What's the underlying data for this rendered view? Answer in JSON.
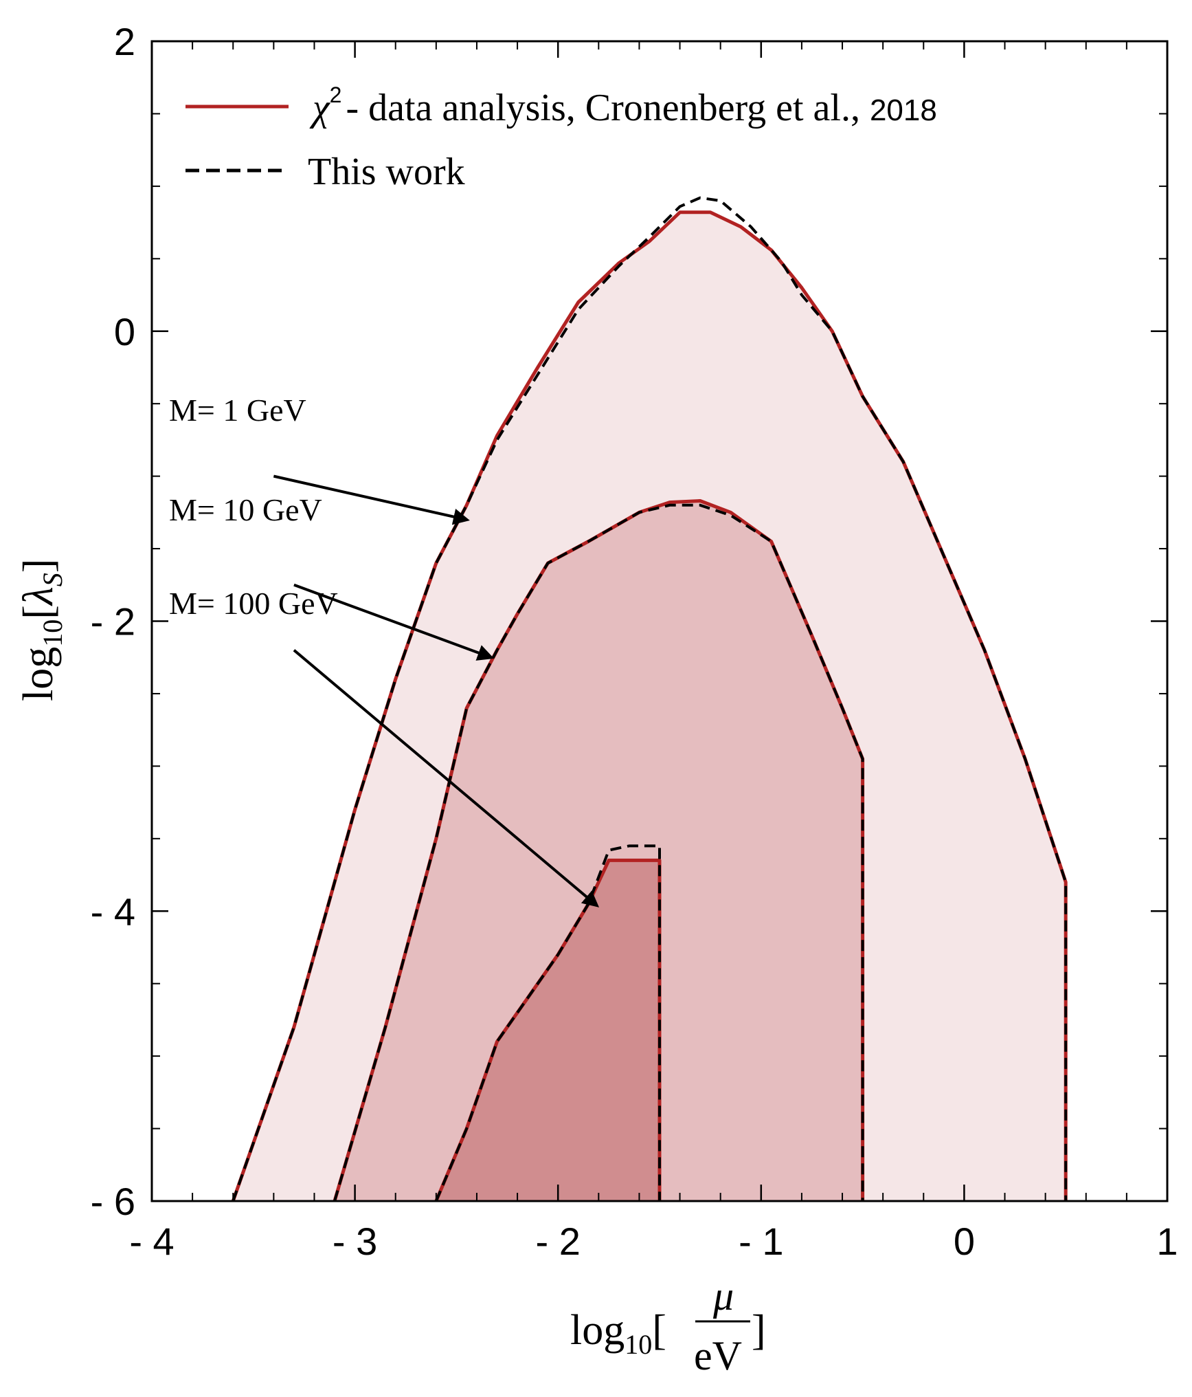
{
  "chart_data": {
    "type": "area",
    "xlabel": {
      "prefix": "log",
      "sub": "10",
      "open": "[",
      "num": "μ",
      "den": "eV",
      "close": "]"
    },
    "ylabel": {
      "prefix": "log",
      "sub": "10",
      "open": "[",
      "sym": "λ",
      "symsub": "S",
      "close": "]"
    },
    "xlim": [
      -4,
      1
    ],
    "ylim": [
      -6,
      2
    ],
    "xticks": [
      -4,
      -3,
      -2,
      -1,
      0,
      1
    ],
    "xtick_labels": [
      "- 4",
      "- 3",
      "- 2",
      "- 1",
      "0",
      "1"
    ],
    "yticks": [
      -6,
      -4,
      -2,
      0,
      2
    ],
    "ytick_labels": [
      "- 6",
      "- 4",
      "- 2",
      "0",
      "2"
    ],
    "legend": {
      "position": "top-left",
      "entries": [
        {
          "style": "solid",
          "color": "#b22222",
          "symbol": "χ",
          "power": "2",
          "text": "- data analysis, Cronenberg et al.,",
          "year": "2018"
        },
        {
          "style": "dashed",
          "color": "#000000",
          "text": "This work"
        }
      ]
    },
    "series": [
      {
        "name": "M= 1 GeV",
        "fill": "#f5e6e7",
        "solid": [
          [
            -3.6,
            -6.0
          ],
          [
            -3.3,
            -4.8
          ],
          [
            -3.0,
            -3.3
          ],
          [
            -2.8,
            -2.4
          ],
          [
            -2.6,
            -1.6
          ],
          [
            -2.45,
            -1.2
          ],
          [
            -2.3,
            -0.72
          ],
          [
            -2.1,
            -0.25
          ],
          [
            -1.9,
            0.2
          ],
          [
            -1.7,
            0.47
          ],
          [
            -1.55,
            0.62
          ],
          [
            -1.4,
            0.82
          ],
          [
            -1.25,
            0.82
          ],
          [
            -1.1,
            0.72
          ],
          [
            -0.95,
            0.56
          ],
          [
            -0.8,
            0.3
          ],
          [
            -0.65,
            0.0
          ],
          [
            -0.5,
            -0.45
          ],
          [
            -0.3,
            -0.9
          ],
          [
            -0.1,
            -1.55
          ],
          [
            0.1,
            -2.2
          ],
          [
            0.3,
            -2.95
          ],
          [
            0.5,
            -3.8
          ],
          [
            0.5,
            -6.0
          ]
        ],
        "dashed": [
          [
            -3.6,
            -6.0
          ],
          [
            -3.3,
            -4.8
          ],
          [
            -3.0,
            -3.3
          ],
          [
            -2.8,
            -2.4
          ],
          [
            -2.6,
            -1.6
          ],
          [
            -2.45,
            -1.2
          ],
          [
            -2.3,
            -0.75
          ],
          [
            -2.1,
            -0.3
          ],
          [
            -1.9,
            0.15
          ],
          [
            -1.7,
            0.45
          ],
          [
            -1.55,
            0.65
          ],
          [
            -1.4,
            0.86
          ],
          [
            -1.3,
            0.92
          ],
          [
            -1.2,
            0.9
          ],
          [
            -1.05,
            0.72
          ],
          [
            -0.9,
            0.48
          ],
          [
            -0.8,
            0.25
          ],
          [
            -0.65,
            0.0
          ],
          [
            -0.5,
            -0.45
          ],
          [
            -0.3,
            -0.9
          ],
          [
            -0.1,
            -1.55
          ],
          [
            0.1,
            -2.2
          ],
          [
            0.3,
            -2.95
          ],
          [
            0.5,
            -3.8
          ],
          [
            0.5,
            -6.0
          ]
        ]
      },
      {
        "name": "M= 10 GeV",
        "fill": "#e5bdbf",
        "solid": [
          [
            -3.1,
            -6.0
          ],
          [
            -2.85,
            -4.8
          ],
          [
            -2.6,
            -3.5
          ],
          [
            -2.45,
            -2.6
          ],
          [
            -2.3,
            -2.2
          ],
          [
            -2.2,
            -1.95
          ],
          [
            -2.05,
            -1.6
          ],
          [
            -1.85,
            -1.45
          ],
          [
            -1.6,
            -1.25
          ],
          [
            -1.45,
            -1.18
          ],
          [
            -1.3,
            -1.17
          ],
          [
            -1.15,
            -1.25
          ],
          [
            -0.95,
            -1.45
          ],
          [
            -0.75,
            -2.1
          ],
          [
            -0.6,
            -2.6
          ],
          [
            -0.5,
            -2.95
          ],
          [
            -0.5,
            -6.0
          ]
        ],
        "dashed": [
          [
            -3.1,
            -6.0
          ],
          [
            -2.85,
            -4.8
          ],
          [
            -2.6,
            -3.5
          ],
          [
            -2.45,
            -2.6
          ],
          [
            -2.3,
            -2.2
          ],
          [
            -2.2,
            -1.95
          ],
          [
            -2.05,
            -1.6
          ],
          [
            -1.85,
            -1.45
          ],
          [
            -1.6,
            -1.25
          ],
          [
            -1.45,
            -1.2
          ],
          [
            -1.3,
            -1.2
          ],
          [
            -1.15,
            -1.27
          ],
          [
            -0.95,
            -1.45
          ],
          [
            -0.75,
            -2.1
          ],
          [
            -0.6,
            -2.6
          ],
          [
            -0.5,
            -2.95
          ],
          [
            -0.5,
            -6.0
          ]
        ]
      },
      {
        "name": "M= 100 GeV",
        "fill": "#d08d8f",
        "solid": [
          [
            -2.6,
            -6.0
          ],
          [
            -2.45,
            -5.5
          ],
          [
            -2.3,
            -4.9
          ],
          [
            -2.15,
            -4.6
          ],
          [
            -2.0,
            -4.3
          ],
          [
            -1.85,
            -3.95
          ],
          [
            -1.75,
            -3.65
          ],
          [
            -1.65,
            -3.65
          ],
          [
            -1.5,
            -3.65
          ],
          [
            -1.5,
            -6.0
          ]
        ],
        "dashed": [
          [
            -2.6,
            -6.0
          ],
          [
            -2.45,
            -5.5
          ],
          [
            -2.3,
            -4.9
          ],
          [
            -2.15,
            -4.6
          ],
          [
            -2.0,
            -4.3
          ],
          [
            -1.85,
            -3.95
          ],
          [
            -1.75,
            -3.58
          ],
          [
            -1.65,
            -3.55
          ],
          [
            -1.5,
            -3.55
          ],
          [
            -1.5,
            -6.0
          ]
        ]
      }
    ],
    "annotations": [
      {
        "text": "M= 1 GeV",
        "arrow_from": [
          -3.4,
          -1.0
        ],
        "arrow_to": [
          -2.45,
          -1.3
        ]
      },
      {
        "text": "M= 10 GeV",
        "arrow_from": [
          -3.3,
          -1.75
        ],
        "arrow_to": [
          -2.33,
          -2.25
        ]
      },
      {
        "text": "M= 100 GeV",
        "arrow_from": [
          -3.3,
          -2.2
        ],
        "arrow_to": [
          -1.81,
          -3.96
        ]
      }
    ]
  }
}
